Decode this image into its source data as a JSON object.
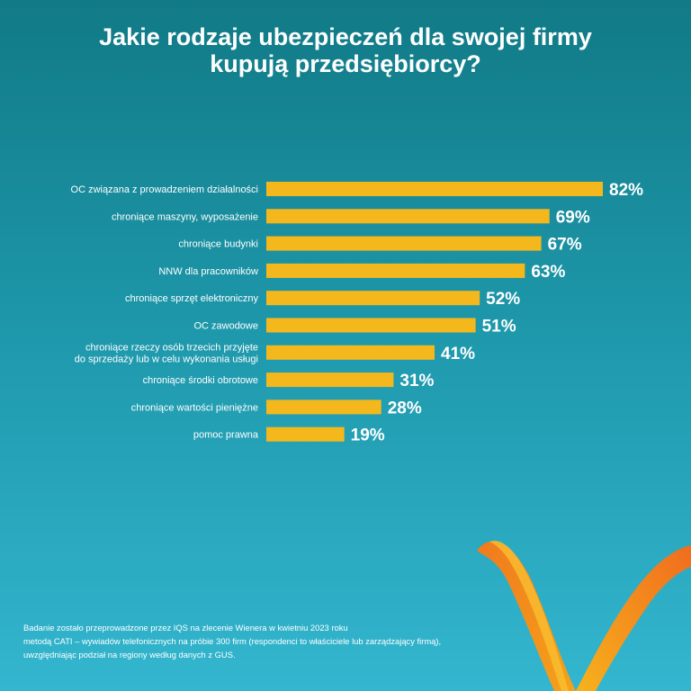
{
  "title": {
    "line1": "Jakie rodzaje ubezpieczeń dla swojej firmy",
    "line2": "kupują przedsiębiorcy?"
  },
  "colors": {
    "bar": "#f5b81c",
    "text": "#ffffff",
    "logo_orange": "#f07a1e",
    "logo_yellow": "#f5a21a"
  },
  "chart_data": {
    "type": "bar",
    "orientation": "horizontal",
    "unit": "%",
    "xlim": [
      0,
      100
    ],
    "grid": false,
    "categories": [
      [
        "OC związana z prowadzeniem działalności"
      ],
      [
        "chroniące maszyny, wyposażenie"
      ],
      [
        "chroniące budynki"
      ],
      [
        "NNW dla pracowników"
      ],
      [
        "chroniące sprzęt elektroniczny"
      ],
      [
        "OC zawodowe"
      ],
      [
        "chroniące rzeczy osób trzecich przyjęte",
        "do sprzedaży lub w celu wykonania usługi"
      ],
      [
        "chroniące środki obrotowe"
      ],
      [
        "chroniące wartości pieniężne"
      ],
      [
        "pomoc prawna"
      ]
    ],
    "values": [
      82,
      69,
      67,
      63,
      52,
      51,
      41,
      31,
      28,
      19
    ],
    "value_labels": [
      "82%",
      "69%",
      "67%",
      "63%",
      "52%",
      "51%",
      "41%",
      "31%",
      "28%",
      "19%"
    ]
  },
  "footnote": {
    "line1": "Badanie zostało przeprowadzone przez IQS na zlecenie Wienera w kwietniu 2023 roku",
    "line2": "metodą CATI – wywiadów telefonicznych na próbie 300 firm (respondenci to właściciele lub zarządzający firmą),",
    "line3": "uwzględniając podział na regiony według danych z GUS."
  }
}
